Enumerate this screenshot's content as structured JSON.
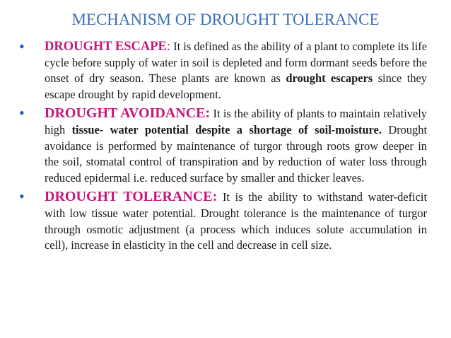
{
  "title": "MECHANISM OF DROUGHT TOLERANCE",
  "bullets": [
    {
      "head": "DROUGHT ESCAPE",
      "colon": ":",
      "text1": " It is defined as the ability of a plant to complete its life cycle before supply of water in soil is depleted and form dormant seeds before the onset of dry season. These plants are known as ",
      "bold1": "drought escapers",
      "text2": " since they escape drought by rapid development."
    },
    {
      "head": "DROUGHT AVOIDANCE:",
      "text1": " It is the ability of plants to maintain relatively high ",
      "bold1": "tissue- water potential despite a shortage of soil-moisture.",
      "text2": " Drought avoidance is performed by maintenance of turgor through roots grow deeper in the soil, stomatal control of transpiration and by reduction of water loss through reduced epidermal i.e. reduced surface by smaller and thicker leaves."
    },
    {
      "head": "DROUGHT TOLERANCE:",
      "text1": " It is the ability to withstand water-deficit with low tissue water potential. Drought tolerance is the maintenance of turgor through osmotic adjustment (a process which induces solute accumulation in cell), increase in elasticity in the cell and decrease in cell size."
    }
  ]
}
